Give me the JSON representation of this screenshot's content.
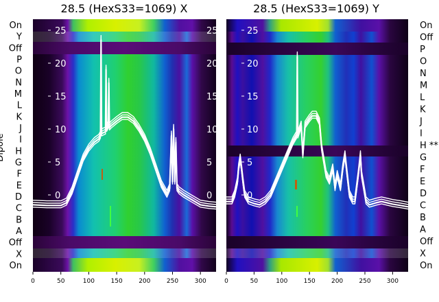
{
  "chart_data": [
    {
      "type": "heatmap",
      "title": "28.5 (HexS33=1069) X",
      "ylabel": "Dipole",
      "row_labels": [
        "On",
        "Y",
        "Off",
        "P",
        "O",
        "N",
        "M",
        "L",
        "K",
        "J",
        "I",
        "H",
        "G",
        "F",
        "E",
        "D",
        "C",
        "B",
        "A",
        "Off",
        "X",
        "On"
      ],
      "x_ticks": [
        0,
        50,
        100,
        150,
        200,
        250,
        300
      ],
      "xlim": [
        0,
        328
      ],
      "overlay_ticks": [
        25,
        20,
        15,
        10,
        5,
        0
      ],
      "overlay_ylim": [
        -2.5,
        26.5
      ],
      "colormap": "gist_ncar-like",
      "colors": {
        "text": "#000000",
        "overlay": "#ffffff"
      },
      "trace": [
        [
          0,
          -1.5
        ],
        [
          25,
          -1.6
        ],
        [
          50,
          -1.6
        ],
        [
          60,
          -1.2
        ],
        [
          70,
          0.5
        ],
        [
          80,
          3
        ],
        [
          90,
          5.5
        ],
        [
          100,
          7
        ],
        [
          110,
          8
        ],
        [
          118,
          8.5
        ],
        [
          121,
          9
        ],
        [
          122,
          23.5
        ],
        [
          123,
          9.3
        ],
        [
          125,
          9.4
        ],
        [
          130,
          9.6
        ],
        [
          131,
          19
        ],
        [
          132,
          10
        ],
        [
          135,
          10.5
        ],
        [
          136,
          17
        ],
        [
          137,
          10.2
        ],
        [
          140,
          10.5
        ],
        [
          150,
          11.2
        ],
        [
          160,
          11.8
        ],
        [
          170,
          11.8
        ],
        [
          180,
          11.2
        ],
        [
          190,
          10
        ],
        [
          200,
          8.5
        ],
        [
          210,
          6.5
        ],
        [
          220,
          4
        ],
        [
          230,
          1.5
        ],
        [
          240,
          0
        ],
        [
          245,
          1
        ],
        [
          248,
          9
        ],
        [
          250,
          2
        ],
        [
          252,
          10
        ],
        [
          254,
          2
        ],
        [
          256,
          8
        ],
        [
          258,
          1
        ],
        [
          262,
          0.5
        ],
        [
          270,
          0
        ],
        [
          280,
          -0.5
        ],
        [
          300,
          -1.5
        ],
        [
          315,
          -1.7
        ],
        [
          328,
          -1.8
        ]
      ]
    },
    {
      "type": "heatmap",
      "title": "28.5 (HexS33=1069) Y",
      "row_labels": [
        "On",
        "Off",
        "P",
        "O",
        "N",
        "M",
        "L",
        "K",
        "J",
        "I",
        "H **",
        "G",
        "F",
        "E",
        "D",
        "C",
        "B",
        "A",
        "Off",
        "X",
        "On"
      ],
      "x_ticks": [
        0,
        50,
        100,
        150,
        200,
        250,
        300
      ],
      "xlim": [
        0,
        328
      ],
      "overlay_ticks": [
        25,
        20,
        15,
        10,
        5,
        0
      ],
      "overlay_ylim": [
        -2.5,
        26.5
      ],
      "colormap": "gist_ncar-like",
      "colors": {
        "text": "#000000",
        "overlay": "#ffffff"
      },
      "trace": [
        [
          0,
          -1
        ],
        [
          10,
          -1
        ],
        [
          15,
          0
        ],
        [
          20,
          2
        ],
        [
          22,
          4
        ],
        [
          25,
          5.5
        ],
        [
          28,
          3.5
        ],
        [
          30,
          2
        ],
        [
          33,
          0
        ],
        [
          40,
          -1
        ],
        [
          50,
          -1.3
        ],
        [
          60,
          -1.5
        ],
        [
          70,
          -1
        ],
        [
          80,
          0
        ],
        [
          90,
          2
        ],
        [
          100,
          4
        ],
        [
          110,
          6
        ],
        [
          120,
          8
        ],
        [
          127,
          9
        ],
        [
          128,
          21
        ],
        [
          129,
          9
        ],
        [
          135,
          10.5
        ],
        [
          138,
          6
        ],
        [
          142,
          10.5
        ],
        [
          150,
          11.5
        ],
        [
          155,
          12
        ],
        [
          162,
          12
        ],
        [
          168,
          11
        ],
        [
          172,
          7
        ],
        [
          176,
          5
        ],
        [
          180,
          3
        ],
        [
          186,
          2
        ],
        [
          192,
          4
        ],
        [
          196,
          1
        ],
        [
          200,
          3
        ],
        [
          206,
          1
        ],
        [
          210,
          4
        ],
        [
          214,
          6
        ],
        [
          218,
          3
        ],
        [
          222,
          0
        ],
        [
          228,
          -1
        ],
        [
          232,
          -1
        ],
        [
          238,
          3
        ],
        [
          242,
          6
        ],
        [
          244,
          3
        ],
        [
          248,
          1
        ],
        [
          252,
          -1
        ],
        [
          258,
          -1.5
        ],
        [
          270,
          -1.2
        ],
        [
          280,
          -1
        ],
        [
          290,
          -1.2
        ],
        [
          300,
          -1.4
        ],
        [
          315,
          -1.6
        ],
        [
          328,
          -1.8
        ]
      ]
    }
  ]
}
